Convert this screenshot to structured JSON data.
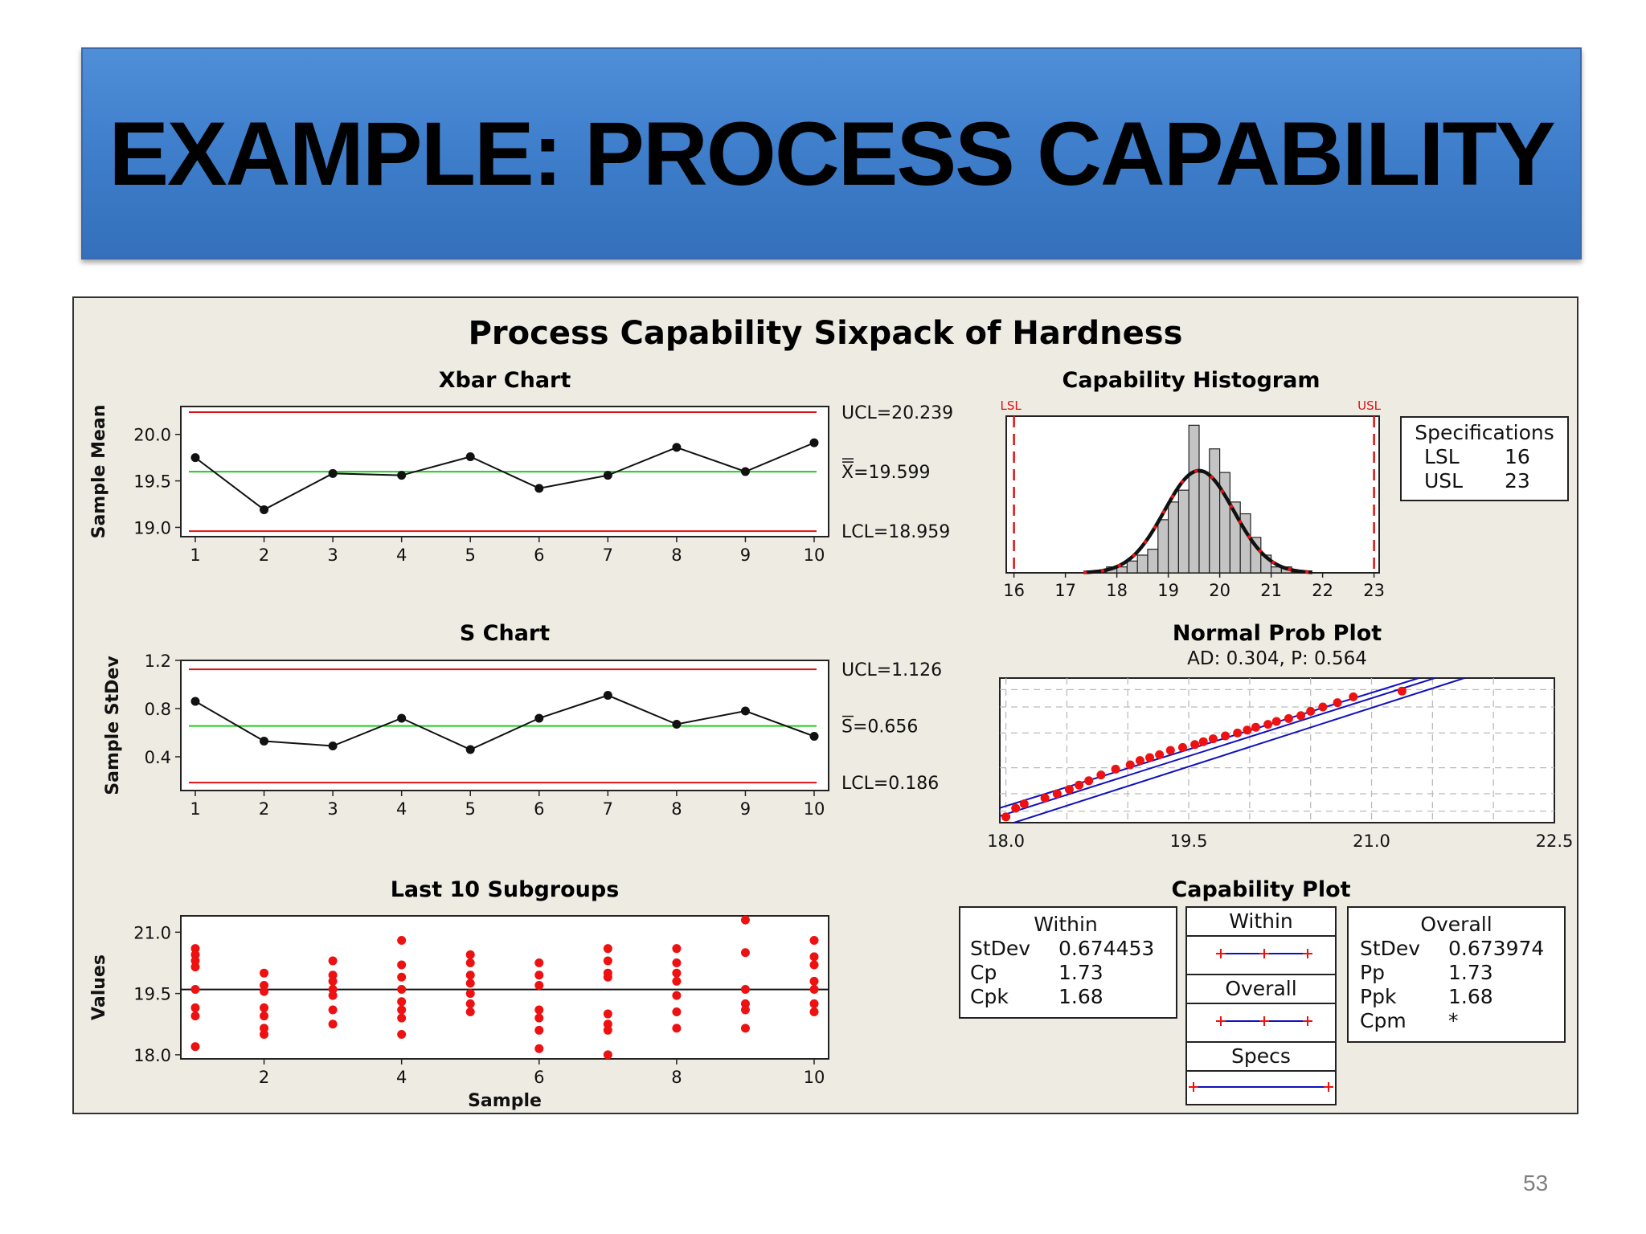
{
  "slide": {
    "title": "EXAMPLE: PROCESS CAPABILITY",
    "page_number": "53"
  },
  "colors": {
    "banner": "#3f7fcc",
    "panel": "#eeebe3",
    "control_limit": "#dd1111",
    "center_line": "#22cc22",
    "data_red": "#ee1111",
    "fit_blue": "#1010c0"
  },
  "figure": {
    "title": "Process Capability Sixpack of Hardness"
  },
  "chart_data": [
    {
      "id": "xbar",
      "type": "line",
      "title": "Xbar Chart",
      "ylabel": "Sample Mean",
      "xlabel": "",
      "x": [
        1,
        2,
        3,
        4,
        5,
        6,
        7,
        8,
        9,
        10
      ],
      "values": [
        19.75,
        19.19,
        19.58,
        19.56,
        19.76,
        19.42,
        19.56,
        19.86,
        19.6,
        19.91
      ],
      "ucl": 20.239,
      "center": 19.599,
      "lcl": 18.959,
      "labels": {
        "ucl": "UCL=20.239",
        "center": "X=19.599",
        "lcl": "LCL=18.959"
      },
      "yticks": [
        19.0,
        19.5,
        20.0
      ],
      "ytick_labels": [
        "19.0",
        "19.5",
        "20.0"
      ],
      "ylim": [
        18.9,
        20.3
      ],
      "xtick_labels": [
        "1",
        "2",
        "3",
        "4",
        "5",
        "6",
        "7",
        "8",
        "9",
        "10"
      ]
    },
    {
      "id": "s",
      "type": "line",
      "title": "S Chart",
      "ylabel": "Sample StDev",
      "xlabel": "",
      "x": [
        1,
        2,
        3,
        4,
        5,
        6,
        7,
        8,
        9,
        10
      ],
      "values": [
        0.86,
        0.53,
        0.49,
        0.72,
        0.46,
        0.72,
        0.91,
        0.67,
        0.78,
        0.57
      ],
      "ucl": 1.126,
      "center": 0.656,
      "lcl": 0.186,
      "labels": {
        "ucl": "UCL=1.126",
        "center": "S=0.656",
        "lcl": "LCL=0.186"
      },
      "yticks": [
        0.4,
        0.8,
        1.2
      ],
      "ytick_labels": [
        "0.4",
        "0.8",
        "1.2"
      ],
      "ylim": [
        0.12,
        1.2
      ],
      "xtick_labels": [
        "1",
        "2",
        "3",
        "4",
        "5",
        "6",
        "7",
        "8",
        "9",
        "10"
      ]
    },
    {
      "id": "last10",
      "type": "scatter",
      "title": "Last 10 Subgroups",
      "ylabel": "Values",
      "xlabel": "Sample",
      "center": 19.599,
      "points": [
        [
          1,
          20.6
        ],
        [
          1,
          20.45
        ],
        [
          1,
          20.3
        ],
        [
          1,
          20.15
        ],
        [
          1,
          19.6
        ],
        [
          1,
          19.15
        ],
        [
          1,
          18.95
        ],
        [
          1,
          18.2
        ],
        [
          2,
          20.0
        ],
        [
          2,
          19.7
        ],
        [
          2,
          19.55
        ],
        [
          2,
          19.15
        ],
        [
          2,
          18.95
        ],
        [
          2,
          18.65
        ],
        [
          2,
          18.5
        ],
        [
          3,
          20.3
        ],
        [
          3,
          19.95
        ],
        [
          3,
          19.8
        ],
        [
          3,
          19.6
        ],
        [
          3,
          19.45
        ],
        [
          3,
          19.1
        ],
        [
          3,
          18.75
        ],
        [
          4,
          20.8
        ],
        [
          4,
          20.2
        ],
        [
          4,
          19.9
        ],
        [
          4,
          19.6
        ],
        [
          4,
          19.3
        ],
        [
          4,
          19.1
        ],
        [
          4,
          18.9
        ],
        [
          4,
          18.5
        ],
        [
          5,
          20.45
        ],
        [
          5,
          20.25
        ],
        [
          5,
          19.95
        ],
        [
          5,
          19.75
        ],
        [
          5,
          19.5
        ],
        [
          5,
          19.25
        ],
        [
          5,
          19.05
        ],
        [
          6,
          20.25
        ],
        [
          6,
          19.95
        ],
        [
          6,
          19.7
        ],
        [
          6,
          19.1
        ],
        [
          6,
          18.9
        ],
        [
          6,
          18.6
        ],
        [
          6,
          18.15
        ],
        [
          7,
          20.6
        ],
        [
          7,
          20.3
        ],
        [
          7,
          20.0
        ],
        [
          7,
          19.9
        ],
        [
          7,
          19.0
        ],
        [
          7,
          18.75
        ],
        [
          7,
          18.6
        ],
        [
          7,
          18.0
        ],
        [
          8,
          20.6
        ],
        [
          8,
          20.25
        ],
        [
          8,
          20.0
        ],
        [
          8,
          19.8
        ],
        [
          8,
          19.45
        ],
        [
          8,
          19.05
        ],
        [
          8,
          18.65
        ],
        [
          9,
          21.3
        ],
        [
          9,
          20.5
        ],
        [
          9,
          19.6
        ],
        [
          9,
          19.25
        ],
        [
          9,
          19.1
        ],
        [
          9,
          18.65
        ],
        [
          10,
          20.8
        ],
        [
          10,
          20.4
        ],
        [
          10,
          20.2
        ],
        [
          10,
          19.8
        ],
        [
          10,
          19.6
        ],
        [
          10,
          19.25
        ],
        [
          10,
          19.05
        ]
      ],
      "yticks": [
        18.0,
        19.5,
        21.0
      ],
      "ytick_labels": [
        "18.0",
        "19.5",
        "21.0"
      ],
      "ylim": [
        17.9,
        21.4
      ],
      "xticks": [
        2,
        4,
        6,
        8,
        10
      ],
      "xtick_labels": [
        "2",
        "4",
        "6",
        "8",
        "10"
      ]
    },
    {
      "id": "histogram",
      "type": "bar",
      "title": "Capability Histogram",
      "bin_edges": [
        17.8,
        18.0,
        18.2,
        18.4,
        18.6,
        18.8,
        19.0,
        19.2,
        19.4,
        19.6,
        19.8,
        20.0,
        20.2,
        20.4,
        20.6,
        20.8,
        21.0,
        21.2,
        21.4
      ],
      "counts": [
        1,
        1,
        2,
        3,
        4,
        9,
        12,
        14,
        25,
        17,
        21,
        17,
        12,
        10,
        6,
        3,
        1,
        1
      ],
      "normal_fit": {
        "mean": 19.599,
        "stdev": 0.674
      },
      "lsl": 16,
      "usl": 23,
      "lsl_label": "LSL",
      "usl_label": "USL",
      "xticks": [
        16,
        17,
        18,
        19,
        20,
        21,
        22,
        23
      ],
      "xtick_labels": [
        "16",
        "17",
        "18",
        "19",
        "20",
        "21",
        "22",
        "23"
      ],
      "xlim": [
        15.85,
        23.1
      ]
    },
    {
      "id": "normprob",
      "type": "scatter",
      "title": "Normal Prob Plot",
      "subtitle": "AD: 0.304, P: 0.564",
      "xticks": [
        18.0,
        19.5,
        21.0,
        22.5
      ],
      "xtick_labels": [
        "18.0",
        "19.5",
        "21.0",
        "22.5"
      ],
      "xlim": [
        17.95,
        22.5
      ],
      "points": [
        [
          18.0,
          0.04
        ],
        [
          18.08,
          0.1
        ],
        [
          18.15,
          0.13
        ],
        [
          18.32,
          0.17
        ],
        [
          18.42,
          0.2
        ],
        [
          18.52,
          0.23
        ],
        [
          18.6,
          0.26
        ],
        [
          18.68,
          0.29
        ],
        [
          18.78,
          0.33
        ],
        [
          18.9,
          0.37
        ],
        [
          19.02,
          0.4
        ],
        [
          19.1,
          0.43
        ],
        [
          19.18,
          0.45
        ],
        [
          19.26,
          0.47
        ],
        [
          19.35,
          0.5
        ],
        [
          19.45,
          0.52
        ],
        [
          19.55,
          0.54
        ],
        [
          19.62,
          0.56
        ],
        [
          19.7,
          0.58
        ],
        [
          19.8,
          0.6
        ],
        [
          19.9,
          0.62
        ],
        [
          19.98,
          0.64
        ],
        [
          20.05,
          0.66
        ],
        [
          20.15,
          0.68
        ],
        [
          20.22,
          0.7
        ],
        [
          20.32,
          0.72
        ],
        [
          20.42,
          0.74
        ],
        [
          20.5,
          0.77
        ],
        [
          20.6,
          0.8
        ],
        [
          20.72,
          0.83
        ],
        [
          20.85,
          0.87
        ],
        [
          21.25,
          0.91
        ]
      ],
      "fit": {
        "x_at_bottom": 17.78,
        "x_at_top": 21.52
      },
      "ci_offset": 0.22
    }
  ],
  "specifications": {
    "title": "Specifications",
    "rows": [
      {
        "label": "LSL",
        "value": "16"
      },
      {
        "label": "USL",
        "value": "23"
      }
    ]
  },
  "capability_plot": {
    "title": "Capability Plot",
    "within_label": "Within",
    "overall_label": "Overall",
    "specs_label": "Specs"
  },
  "within_stats": {
    "title": "Within",
    "rows": [
      {
        "label": "StDev",
        "value": "0.674453"
      },
      {
        "label": "Cp",
        "value": "1.73"
      },
      {
        "label": "Cpk",
        "value": "1.68"
      }
    ]
  },
  "overall_stats": {
    "title": "Overall",
    "rows": [
      {
        "label": "StDev",
        "value": "0.673974"
      },
      {
        "label": "Pp",
        "value": "1.73"
      },
      {
        "label": "Ppk",
        "value": "1.68"
      },
      {
        "label": "Cpm",
        "value": "*"
      }
    ]
  }
}
